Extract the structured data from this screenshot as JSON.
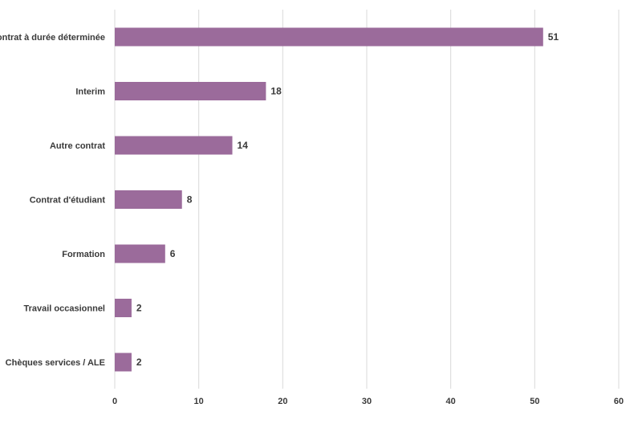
{
  "chart_data": {
    "type": "bar",
    "orientation": "horizontal",
    "title": "",
    "xlabel": "",
    "ylabel": "",
    "categories": [
      "Contrat à durée déterminée",
      "Interim",
      "Autre contrat",
      "Contrat d'étudiant",
      "Formation",
      "Travail occasionnel",
      "Chèques services / ALE"
    ],
    "values": [
      51,
      18,
      14,
      8,
      6,
      2,
      2
    ],
    "value_labels": [
      "51",
      "18",
      "14",
      "8",
      "6",
      "2",
      "2"
    ],
    "xlim": [
      0,
      60
    ],
    "ticks": [
      0,
      10,
      20,
      30,
      40,
      50,
      60
    ],
    "tick_labels": [
      "0",
      "10",
      "20",
      "30",
      "40",
      "50",
      "60"
    ],
    "grid": "vertical",
    "legend": "none",
    "bar_color": "#9b6b9b"
  }
}
